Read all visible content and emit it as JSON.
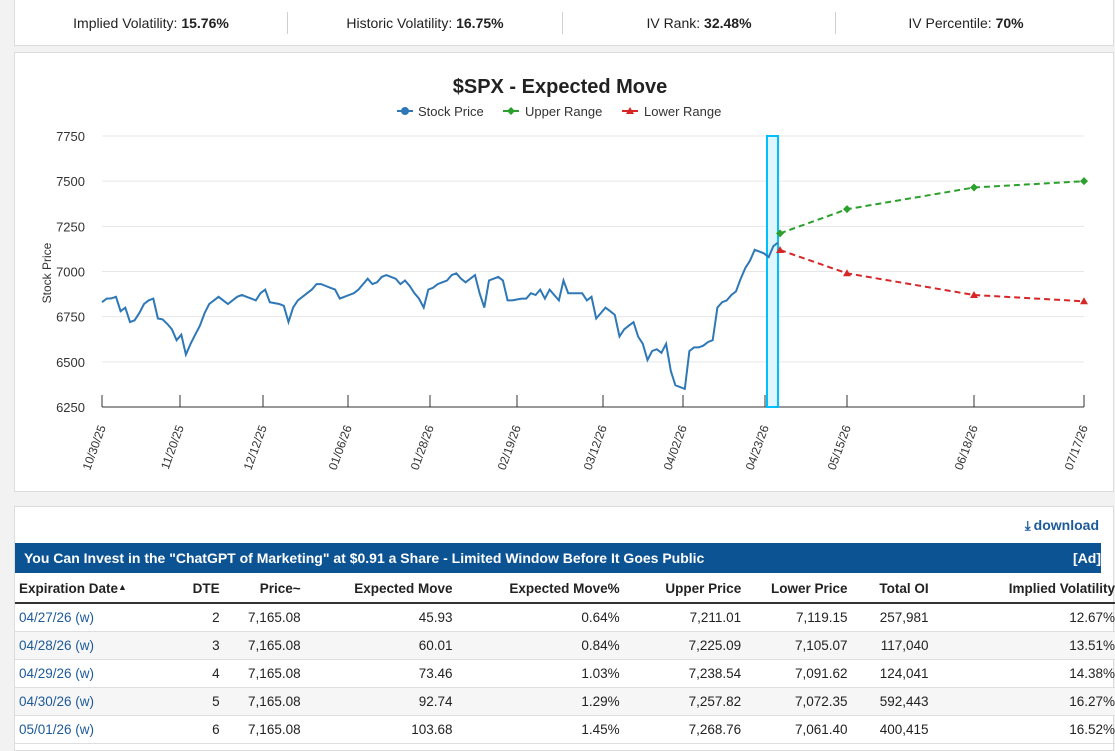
{
  "stats": [
    {
      "label": "Implied Volatility:",
      "value": "15.76%"
    },
    {
      "label": "Historic Volatility:",
      "value": "16.75%"
    },
    {
      "label": "IV Rank:",
      "value": "32.48%"
    },
    {
      "label": "IV Percentile:",
      "value": "70%"
    }
  ],
  "chart": {
    "title": "$SPX - Expected Move",
    "ylabel": "Stock Price",
    "legend": [
      "Stock Price",
      "Upper Range",
      "Lower Range"
    ]
  },
  "chart_data": {
    "type": "line",
    "title": "$SPX - Expected Move",
    "ylabel": "Stock Price",
    "xlabel": "",
    "ylim": [
      6250,
      7750
    ],
    "yticks": [
      6250,
      6500,
      6750,
      7000,
      7250,
      7500,
      7750
    ],
    "xticks": [
      "10/30/25",
      "11/20/25",
      "12/12/25",
      "01/06/26",
      "01/28/26",
      "02/19/26",
      "03/12/26",
      "04/02/26",
      "04/23/26",
      "05/15/26",
      "06/18/26",
      "07/17/26"
    ],
    "legend_position": "top-center",
    "colors": {
      "stock": "#2e78b7",
      "upper": "#2ca02c",
      "lower": "#d62728",
      "highlight": "#00bfff"
    },
    "series": [
      {
        "name": "Stock Price",
        "values": [
          6830,
          6850,
          6851,
          6860,
          6780,
          6800,
          6720,
          6730,
          6770,
          6820,
          6840,
          6850,
          6740,
          6735,
          6710,
          6680,
          6620,
          6650,
          6540,
          6600,
          6650,
          6700,
          6770,
          6820,
          6840,
          6860,
          6840,
          6820,
          6840,
          6860,
          6870,
          6860,
          6850,
          6840,
          6880,
          6900,
          6830,
          6825,
          6820,
          6810,
          6720,
          6800,
          6840,
          6860,
          6880,
          6900,
          6930,
          6930,
          6920,
          6910,
          6900,
          6850,
          6860,
          6870,
          6880,
          6900,
          6930,
          6960,
          6930,
          6940,
          6970,
          6980,
          6970,
          6960,
          6930,
          6950,
          6920,
          6880,
          6850,
          6800,
          6900,
          6910,
          6930,
          6940,
          6950,
          6980,
          6990,
          6960,
          6940,
          6960,
          6980,
          6880,
          6800,
          6950,
          6960,
          6970,
          6950,
          6840,
          6840,
          6845,
          6850,
          6850,
          6880,
          6870,
          6900,
          6850,
          6900,
          6870,
          6840,
          6950,
          6880,
          6880,
          6880,
          6880,
          6840,
          6860,
          6740,
          6770,
          6800,
          6780,
          6760,
          6640,
          6680,
          6700,
          6720,
          6640,
          6600,
          6510,
          6560,
          6570,
          6550,
          6600,
          6450,
          6370,
          6360,
          6350,
          6560,
          6580,
          6580,
          6590,
          6610,
          6620,
          6800,
          6830,
          6840,
          6870,
          6890,
          6960,
          7020,
          7060,
          7120,
          7110,
          7100,
          7080,
          7140,
          7160
        ]
      },
      {
        "name": "Upper Range",
        "x": [
          "04/24/26",
          "05/15/26",
          "06/18/26",
          "07/17/26"
        ],
        "values": [
          7211,
          7345,
          7465,
          7500
        ]
      },
      {
        "name": "Lower Range",
        "x": [
          "04/24/26",
          "05/15/26",
          "06/18/26",
          "07/17/26"
        ],
        "values": [
          7119,
          6990,
          6870,
          6835
        ]
      }
    ]
  },
  "download": {
    "label": "download"
  },
  "ad": {
    "text": "You Can Invest in the \"ChatGPT of Marketing\" at $0.91 a Share - Limited Window Before It Goes Public",
    "tag": "[Ad]"
  },
  "table": {
    "headers": [
      "Expiration Date",
      "DTE",
      "Price~",
      "Expected Move",
      "Expected Move%",
      "Upper Price",
      "Lower Price",
      "Total OI",
      "Implied Volatility"
    ],
    "sort_indicator": "▲",
    "rows": [
      [
        "04/27/26 (w)",
        "2",
        "7,165.08",
        "45.93",
        "0.64%",
        "7,211.01",
        "7,119.15",
        "257,981",
        "12.67%"
      ],
      [
        "04/28/26 (w)",
        "3",
        "7,165.08",
        "60.01",
        "0.84%",
        "7,225.09",
        "7,105.07",
        "117,040",
        "13.51%"
      ],
      [
        "04/29/26 (w)",
        "4",
        "7,165.08",
        "73.46",
        "1.03%",
        "7,238.54",
        "7,091.62",
        "124,041",
        "14.38%"
      ],
      [
        "04/30/26 (w)",
        "5",
        "7,165.08",
        "92.74",
        "1.29%",
        "7,257.82",
        "7,072.35",
        "592,443",
        "16.27%"
      ],
      [
        "05/01/26 (w)",
        "6",
        "7,165.08",
        "103.68",
        "1.45%",
        "7,268.76",
        "7,061.40",
        "400,415",
        "16.52%"
      ]
    ]
  }
}
